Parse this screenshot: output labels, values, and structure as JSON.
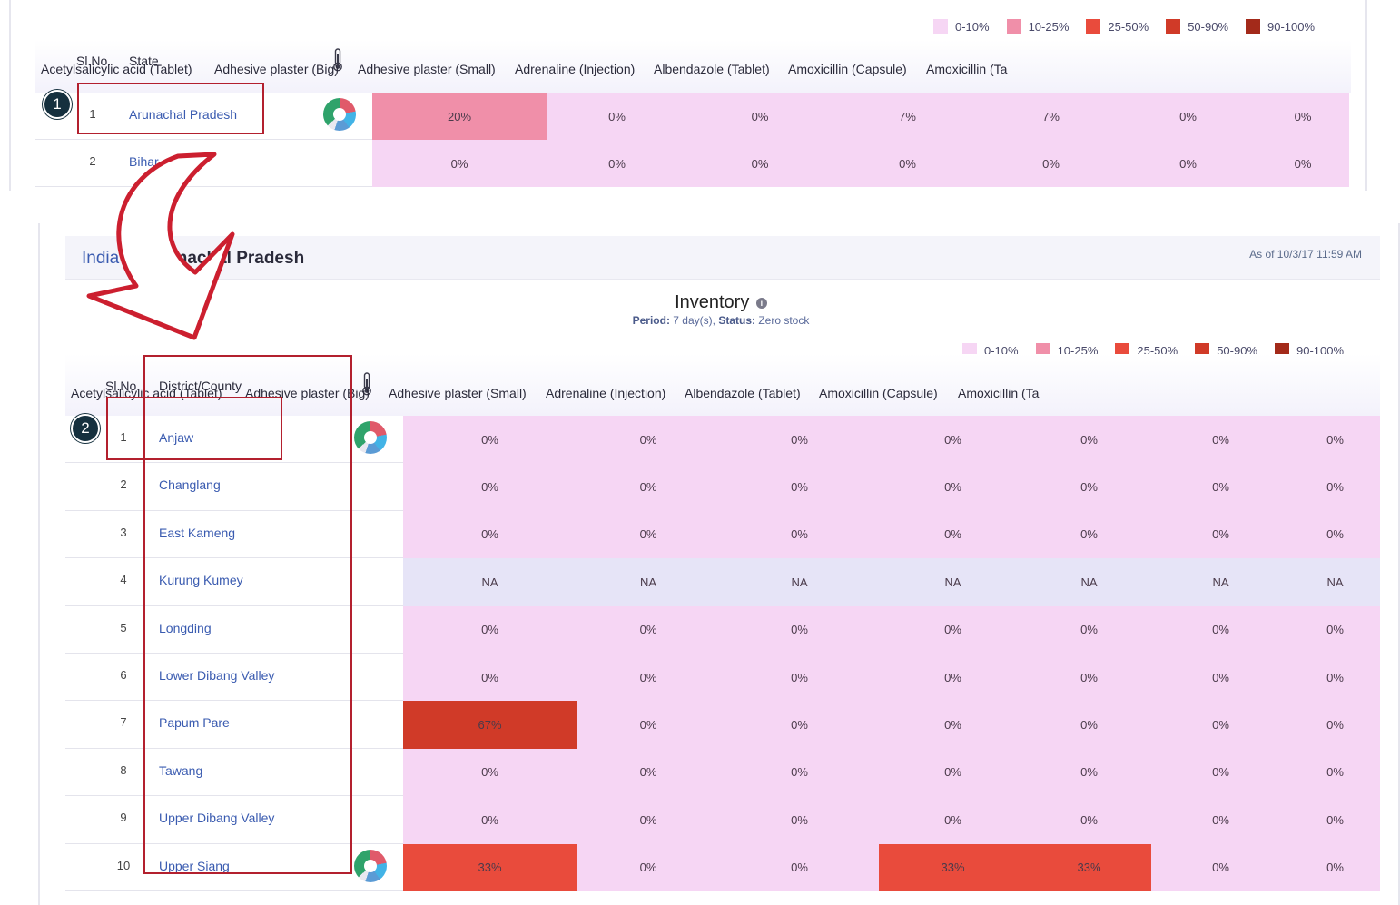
{
  "legend": [
    {
      "label": "0-10%",
      "color": "#f6d6f4"
    },
    {
      "label": "10-25%",
      "color": "#f08fa9"
    },
    {
      "label": "25-50%",
      "color": "#e94b3c"
    },
    {
      "label": "50-90%",
      "color": "#d03a28"
    },
    {
      "label": "90-100%",
      "color": "#a32a1a"
    }
  ],
  "colors": {
    "na": "#e6e4f7",
    "low": "#f6d6f4",
    "pink": "#f08fa9",
    "red": "#e94b3c",
    "dark_red": "#d03a28"
  },
  "columns": [
    "Acetylsalicylic acid (Tablet)",
    "Adhesive plaster (Big)",
    "Adhesive plaster (Small)",
    "Adrenaline (Injection)",
    "Albendazole (Tablet)",
    "Amoxicillin (Capsule)",
    "Amoxicillin (Ta"
  ],
  "state_table": {
    "sl_header": "Sl.No.",
    "name_header": "State",
    "rows": [
      {
        "sl": "1",
        "name": "Arunachal Pradesh",
        "donut": true,
        "cells": [
          "20%",
          "0%",
          "0%",
          "7%",
          "7%",
          "0%",
          "0%"
        ],
        "tones": [
          "pink",
          "low",
          "low",
          "low",
          "low",
          "low",
          "low"
        ]
      },
      {
        "sl": "2",
        "name": "Bihar",
        "donut": false,
        "cells": [
          "0%",
          "0%",
          "0%",
          "0%",
          "0%",
          "0%",
          "0%"
        ],
        "tones": [
          "low",
          "low",
          "low",
          "low",
          "low",
          "low",
          "low"
        ]
      }
    ]
  },
  "breadcrumb": {
    "root": "India",
    "current": "Arunachal Pradesh"
  },
  "as_of": "As of 10/3/17 11:59 AM",
  "inventory": {
    "title": "Inventory",
    "info_icon": "info-icon",
    "period_label": "Period:",
    "period_value": " 7 day(s),",
    "status_label": "Status:",
    "status_value": " Zero stock"
  },
  "district_table": {
    "sl_header": "Sl.No.",
    "name_header": "District/County",
    "rows": [
      {
        "sl": "1",
        "name": "Anjaw",
        "donut": true,
        "cells": [
          "0%",
          "0%",
          "0%",
          "0%",
          "0%",
          "0%",
          "0%"
        ],
        "tones": [
          "low",
          "low",
          "low",
          "low",
          "low",
          "low",
          "low"
        ]
      },
      {
        "sl": "2",
        "name": "Changlang",
        "donut": false,
        "cells": [
          "0%",
          "0%",
          "0%",
          "0%",
          "0%",
          "0%",
          "0%"
        ],
        "tones": [
          "low",
          "low",
          "low",
          "low",
          "low",
          "low",
          "low"
        ]
      },
      {
        "sl": "3",
        "name": "East Kameng",
        "donut": false,
        "cells": [
          "0%",
          "0%",
          "0%",
          "0%",
          "0%",
          "0%",
          "0%"
        ],
        "tones": [
          "low",
          "low",
          "low",
          "low",
          "low",
          "low",
          "low"
        ]
      },
      {
        "sl": "4",
        "name": "Kurung Kumey",
        "donut": false,
        "cells": [
          "NA",
          "NA",
          "NA",
          "NA",
          "NA",
          "NA",
          "NA"
        ],
        "tones": [
          "na",
          "na",
          "na",
          "na",
          "na",
          "na",
          "na"
        ]
      },
      {
        "sl": "5",
        "name": "Longding",
        "donut": false,
        "cells": [
          "0%",
          "0%",
          "0%",
          "0%",
          "0%",
          "0%",
          "0%"
        ],
        "tones": [
          "low",
          "low",
          "low",
          "low",
          "low",
          "low",
          "low"
        ]
      },
      {
        "sl": "6",
        "name": "Lower Dibang Valley",
        "donut": false,
        "cells": [
          "0%",
          "0%",
          "0%",
          "0%",
          "0%",
          "0%",
          "0%"
        ],
        "tones": [
          "low",
          "low",
          "low",
          "low",
          "low",
          "low",
          "low"
        ]
      },
      {
        "sl": "7",
        "name": "Papum Pare",
        "donut": false,
        "cells": [
          "67%",
          "0%",
          "0%",
          "0%",
          "0%",
          "0%",
          "0%"
        ],
        "tones": [
          "dark_red",
          "low",
          "low",
          "low",
          "low",
          "low",
          "low"
        ]
      },
      {
        "sl": "8",
        "name": "Tawang",
        "donut": false,
        "cells": [
          "0%",
          "0%",
          "0%",
          "0%",
          "0%",
          "0%",
          "0%"
        ],
        "tones": [
          "low",
          "low",
          "low",
          "low",
          "low",
          "low",
          "low"
        ]
      },
      {
        "sl": "9",
        "name": "Upper Dibang Valley",
        "donut": false,
        "cells": [
          "0%",
          "0%",
          "0%",
          "0%",
          "0%",
          "0%",
          "0%"
        ],
        "tones": [
          "low",
          "low",
          "low",
          "low",
          "low",
          "low",
          "low"
        ]
      },
      {
        "sl": "10",
        "name": "Upper Siang",
        "donut": true,
        "cells": [
          "33%",
          "0%",
          "0%",
          "33%",
          "33%",
          "0%",
          "0%"
        ],
        "tones": [
          "red",
          "low",
          "low",
          "red",
          "red",
          "low",
          "low"
        ]
      }
    ]
  },
  "annotations": {
    "step1": "1",
    "step2": "2"
  }
}
